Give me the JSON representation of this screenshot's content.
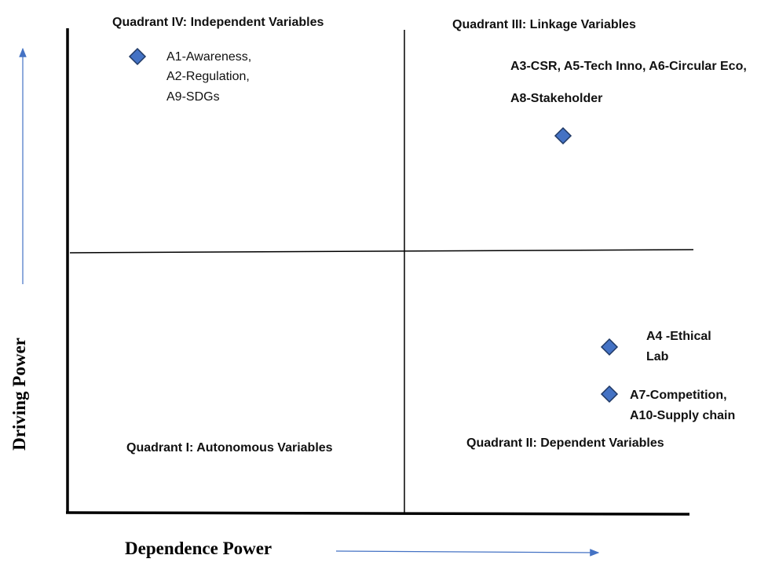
{
  "axes": {
    "x_title": "Dependence Power",
    "y_title": "Driving Power"
  },
  "colors": {
    "marker_fill": "#4472C4",
    "marker_stroke": "#1F3864",
    "arrow": "#4472C4",
    "line": "#000000"
  },
  "quadrants": [
    {
      "id": "q4",
      "label": "Quadrant IV: Independent Variables"
    },
    {
      "id": "q3",
      "label": "Quadrant III: Linkage Variables"
    },
    {
      "id": "q1",
      "label": "Quadrant I: Autonomous Variables"
    },
    {
      "id": "q2",
      "label": "Quadrant II: Dependent Variables"
    }
  ],
  "points": [
    {
      "id": "p1",
      "lines": [
        "A1-Awareness,",
        "A2-Regulation,",
        "A9-SDGs"
      ]
    },
    {
      "id": "p2",
      "lines": [
        "A3-CSR, A5-Tech Inno, A6-Circular Eco,",
        "A8-Stakeholder"
      ]
    },
    {
      "id": "p3",
      "lines": [
        "A4 -Ethical",
        "Lab"
      ]
    },
    {
      "id": "p4",
      "lines": [
        "A7-Competition,",
        "A10-Supply chain"
      ]
    }
  ]
}
